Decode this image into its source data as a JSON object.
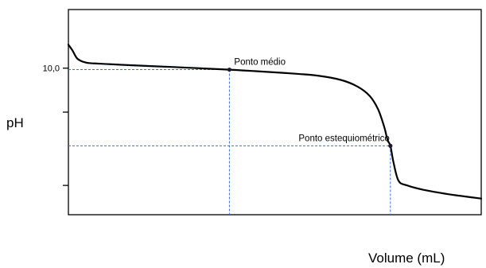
{
  "chart_data": {
    "type": "line",
    "title": "",
    "xlabel": "Volume (mL)",
    "ylabel": "pH",
    "xlim": [
      0,
      100
    ],
    "ylim": [
      0,
      14
    ],
    "y_ticks": [
      {
        "value": 10.0,
        "label": "10,0"
      },
      {
        "value": 7.0,
        "label": ""
      },
      {
        "value": 2.0,
        "label": ""
      }
    ],
    "grid": false,
    "series": [
      {
        "name": "",
        "x": [
          0,
          1,
          2,
          3,
          4,
          5,
          8,
          15,
          25,
          35,
          39,
          45,
          52,
          60,
          66,
          70,
          73,
          75,
          76.5,
          77.3,
          78,
          78.8,
          80,
          82,
          86,
          92,
          96,
          100
        ],
        "y": [
          11.6,
          11.2,
          10.7,
          10.5,
          10.4,
          10.35,
          10.3,
          10.2,
          10.08,
          9.95,
          9.9,
          9.8,
          9.68,
          9.5,
          9.2,
          8.75,
          8.1,
          7.2,
          6.0,
          5.1,
          4.7,
          3.5,
          2.3,
          2.0,
          1.7,
          1.4,
          1.25,
          1.1
        ]
      }
    ],
    "annotations": [
      {
        "name": "midpoint",
        "text": "Ponto médio",
        "x": 39,
        "y": 9.9
      },
      {
        "name": "equivalence",
        "text": "Ponto estequiométrico",
        "x": 78,
        "y": 4.7
      }
    ]
  }
}
